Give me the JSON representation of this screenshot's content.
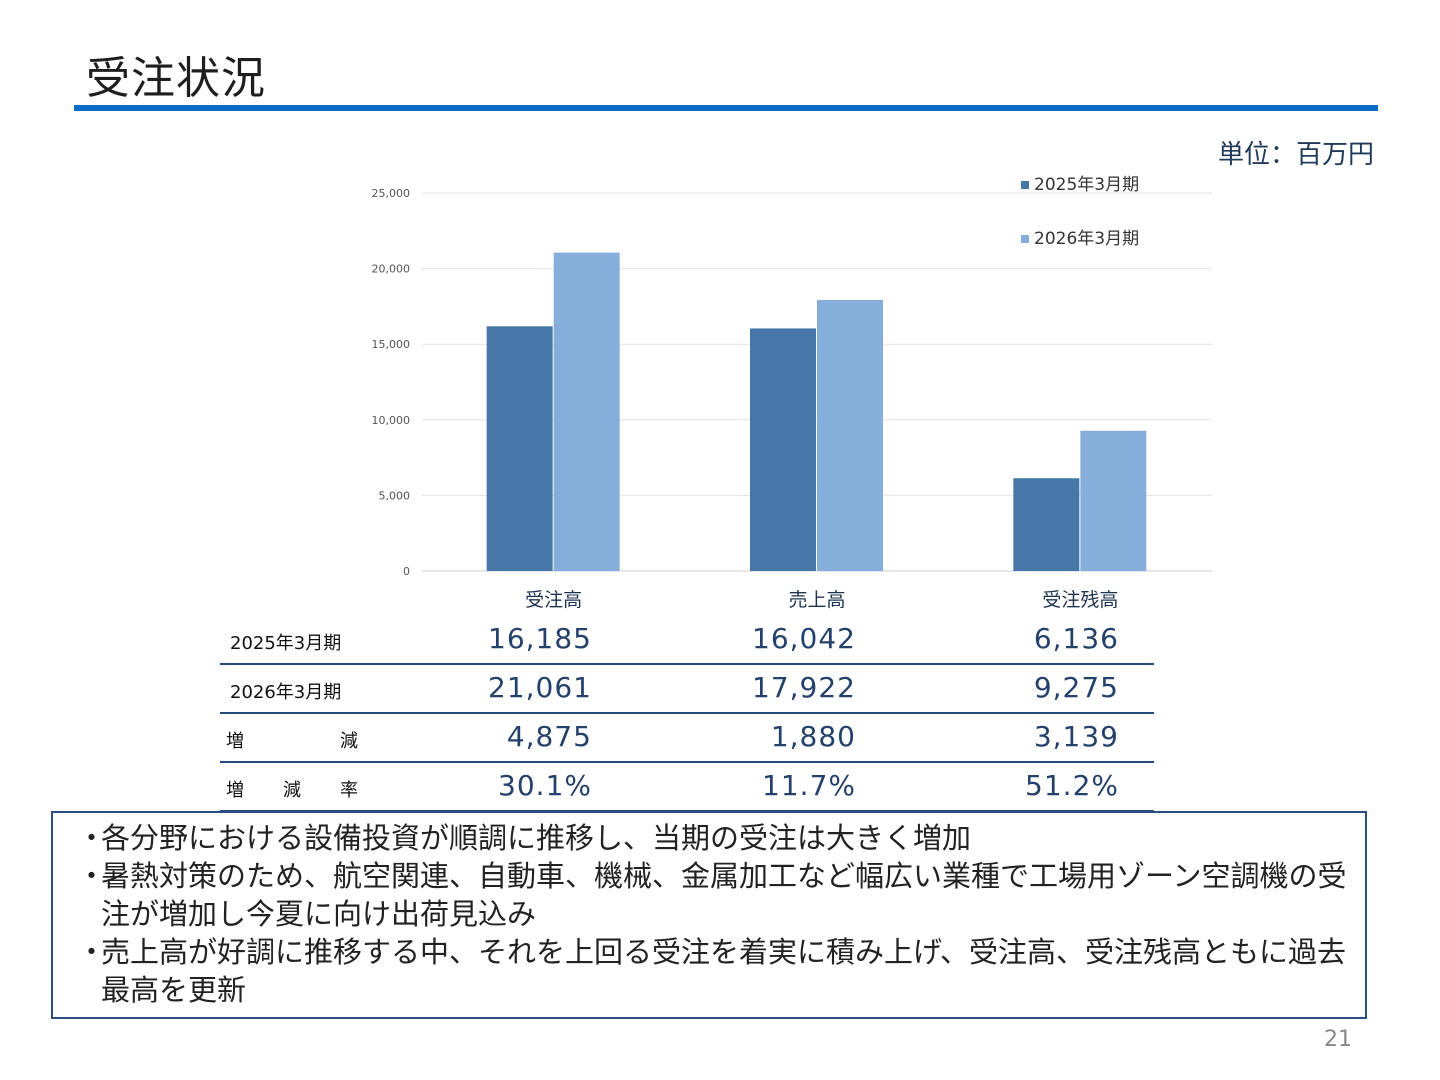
{
  "slide": {
    "title": "受注状況",
    "unit_label": "単位：百万円",
    "page_number": "21",
    "colors": {
      "title_rule": "#0c6cc4",
      "series_2025": "#4677a8",
      "series_2026": "#86aedb",
      "table_rule": "#26497c"
    }
  },
  "chart_data": {
    "type": "bar",
    "categories": [
      "受注高",
      "売上高",
      "受注残高"
    ],
    "series": [
      {
        "name": "2025年3月期",
        "values": [
          16185,
          16042,
          6136
        ],
        "color": "#4677a8"
      },
      {
        "name": "2026年3月期",
        "values": [
          21061,
          17922,
          9275
        ],
        "color": "#86aedb"
      }
    ],
    "ylim": [
      0,
      25000
    ],
    "yticks": [
      0,
      5000,
      10000,
      15000,
      20000,
      25000
    ],
    "ytick_labels": [
      "0",
      "5,000",
      "10,000",
      "15,000",
      "20,000",
      "25,000"
    ],
    "grid": true,
    "legend": "top-right"
  },
  "table": {
    "rows": [
      {
        "label": "2025年3月期",
        "values": [
          "16,185",
          "16,042",
          "6,136"
        ]
      },
      {
        "label": "2026年3月期",
        "values": [
          "21,061",
          "17,922",
          "9,275"
        ]
      },
      {
        "label_parts": [
          "増",
          "減"
        ],
        "values": [
          "4,875",
          "1,880",
          "3,139"
        ]
      },
      {
        "label_parts": [
          "増",
          "減",
          "率"
        ],
        "values": [
          "30.1%",
          "11.7%",
          "51.2%"
        ]
      }
    ]
  },
  "notes": {
    "bullet": "・",
    "items": [
      "各分野における設備投資が順調に推移し、当期の受注は大きく増加",
      "暑熱対策のため、航空関連、自動車、機械、金属加工など幅広い業種で工場用ゾーン空調機の受注が増加し今夏に向け出荷見込み",
      "売上高が好調に推移する中、それを上回る受注を着実に積み上げ、受注高、受注残高ともに過去最高を更新"
    ]
  }
}
